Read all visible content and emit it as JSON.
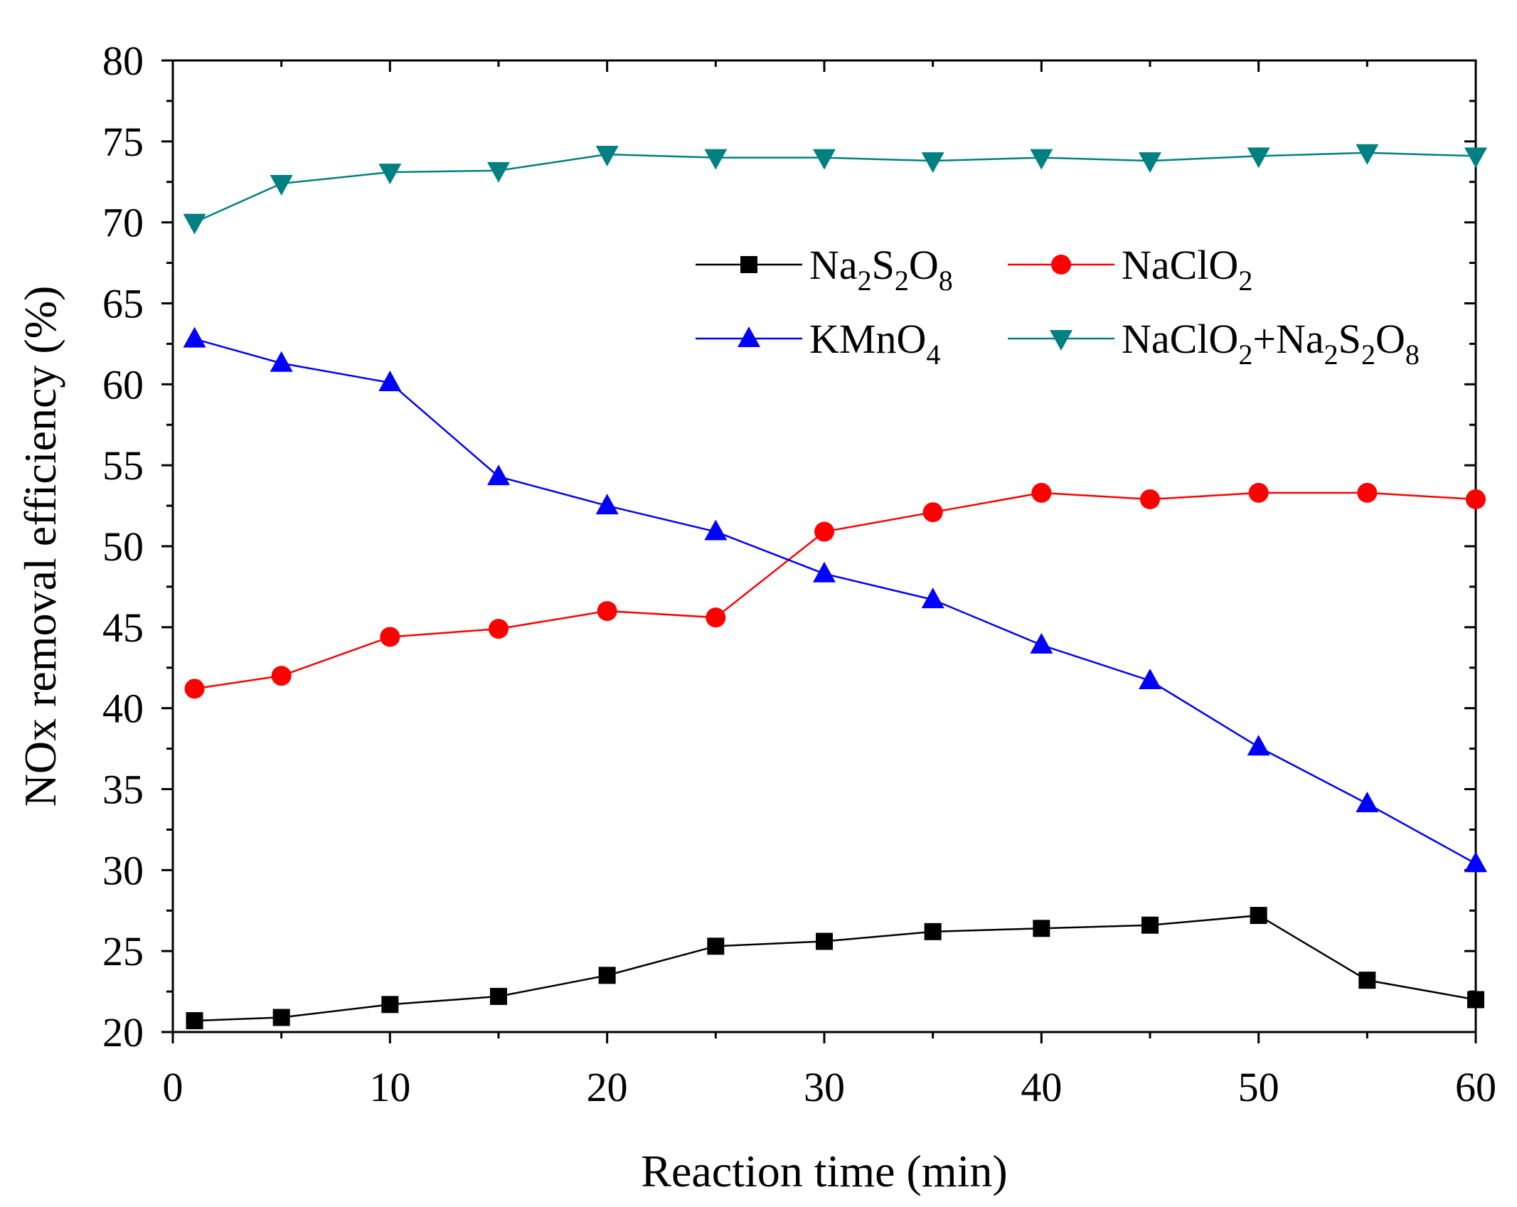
{
  "chart_data": {
    "type": "line",
    "title": "",
    "xlabel": "Reaction time (min)",
    "ylabel": "NOx removal efficiency (%)",
    "xlim": [
      0,
      60
    ],
    "ylim": [
      20,
      80
    ],
    "xticks": [
      0,
      10,
      20,
      30,
      40,
      50,
      60
    ],
    "yticks": [
      20,
      25,
      30,
      35,
      40,
      45,
      50,
      55,
      60,
      65,
      70,
      75,
      80
    ],
    "grid": false,
    "legend_position": "upper-middle",
    "x": [
      1,
      5,
      10,
      15,
      20,
      25,
      30,
      35,
      40,
      45,
      50,
      55,
      60
    ],
    "series": [
      {
        "name": "Na2S2O8",
        "legend_parts": [
          [
            "Na",
            ""
          ],
          [
            "2",
            "sub"
          ],
          [
            "S",
            ""
          ],
          [
            "2",
            "sub"
          ],
          [
            "O",
            ""
          ],
          [
            "8",
            "sub"
          ]
        ],
        "color": "#000000",
        "marker": "square",
        "values": [
          20.7,
          20.9,
          21.7,
          22.2,
          23.5,
          25.3,
          25.6,
          26.2,
          26.4,
          26.6,
          27.2,
          23.2,
          22.0
        ]
      },
      {
        "name": "NaClO2",
        "legend_parts": [
          [
            "NaClO",
            ""
          ],
          [
            "2",
            "sub"
          ]
        ],
        "color": "#ff0000",
        "marker": "circle",
        "values": [
          41.2,
          42.0,
          44.4,
          44.9,
          46.0,
          45.6,
          50.9,
          52.1,
          53.3,
          52.9,
          53.3,
          53.3,
          52.9
        ]
      },
      {
        "name": "KMnO4",
        "legend_parts": [
          [
            "KMnO",
            ""
          ],
          [
            "4",
            "sub"
          ]
        ],
        "color": "#0000ff",
        "marker": "triangle-up",
        "values": [
          62.8,
          61.3,
          60.1,
          54.3,
          52.5,
          50.9,
          48.3,
          46.7,
          43.9,
          41.7,
          37.6,
          34.1,
          30.4
        ]
      },
      {
        "name": "NaClO2+Na2S2O8",
        "legend_parts": [
          [
            "NaClO",
            ""
          ],
          [
            "2",
            "sub"
          ],
          [
            "+Na",
            ""
          ],
          [
            "2",
            "sub"
          ],
          [
            "S",
            ""
          ],
          [
            "2",
            "sub"
          ],
          [
            "O",
            ""
          ],
          [
            "8",
            "sub"
          ]
        ],
        "color": "#008080",
        "marker": "triangle-down",
        "values": [
          70.0,
          72.4,
          73.1,
          73.2,
          74.2,
          74.0,
          74.0,
          73.8,
          74.0,
          73.8,
          74.1,
          74.3,
          74.1
        ]
      }
    ]
  }
}
